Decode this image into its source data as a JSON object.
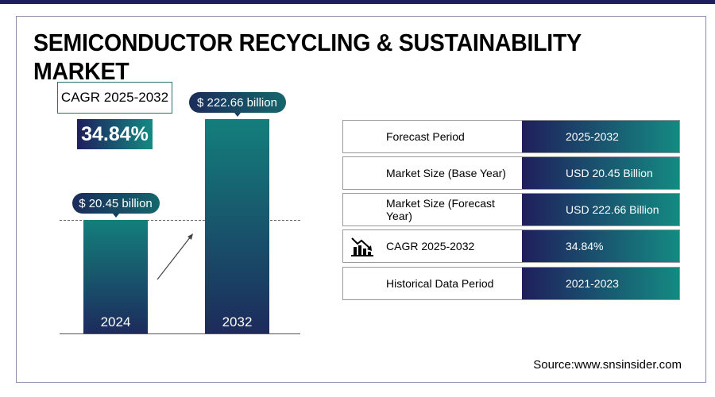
{
  "title": "SEMICONDUCTOR RECYCLING & SUSTAINABILITY MARKET",
  "cagr": {
    "label": "CAGR 2025-2032",
    "value": "34.84%"
  },
  "chart_data": {
    "type": "bar",
    "categories": [
      "2024",
      "2032"
    ],
    "values": [
      20.45,
      222.66
    ],
    "data_labels": [
      "$ 20.45 billion",
      "$ 222.66 billion"
    ],
    "unit": "USD billion"
  },
  "table": [
    {
      "label": "Forecast Period",
      "value": "2025-2032"
    },
    {
      "label": "Market Size (Base Year)",
      "value": "USD 20.45 Billion"
    },
    {
      "label": "Market Size (Forecast Year)",
      "value": "USD 222.66 Billion"
    },
    {
      "label": "CAGR 2025-2032",
      "value": "34.84%",
      "icon": "chart-growth-icon"
    },
    {
      "label": "Historical Data Period",
      "value": "2021-2023"
    }
  ],
  "source": "Source:www.snsinsider.com",
  "colors": {
    "navy": "#1f1f5c",
    "teal": "#148a82"
  }
}
